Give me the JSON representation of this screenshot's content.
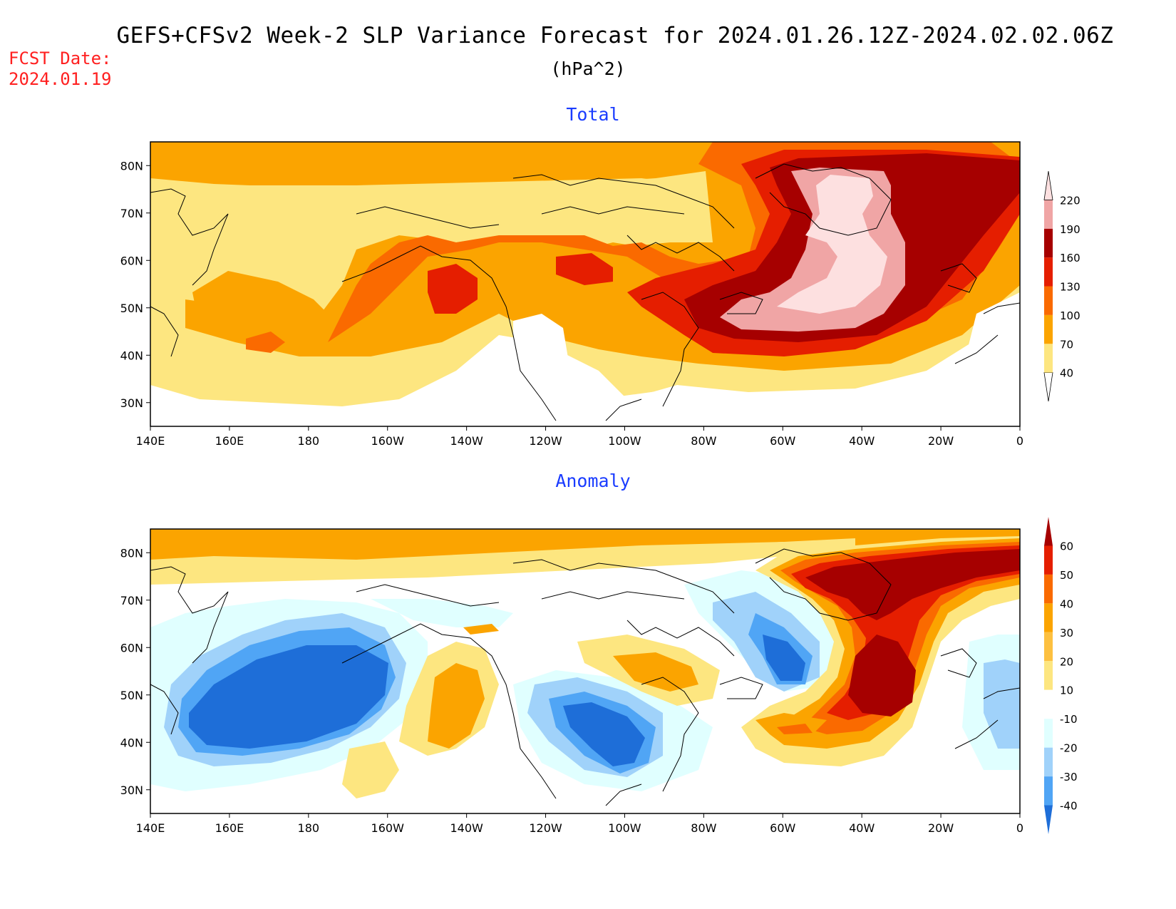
{
  "header": {
    "title": "GEFS+CFSv2 Week-2 SLP Variance Forecast for 2024.01.26.12Z-2024.02.02.06Z",
    "units": "(hPa^2)",
    "fcst_label": "FCST Date:",
    "fcst_date": "2024.01.19"
  },
  "panels": [
    {
      "title": "Total",
      "lon_ticks": [
        "140E",
        "160E",
        "180",
        "160W",
        "140W",
        "120W",
        "100W",
        "80W",
        "60W",
        "40W",
        "20W",
        "0"
      ],
      "lat_ticks": [
        "30N",
        "40N",
        "50N",
        "60N",
        "70N",
        "80N"
      ],
      "colorbar": {
        "levels": [
          "40",
          "70",
          "100",
          "130",
          "160",
          "190",
          "220"
        ],
        "colors": [
          "#ffffff",
          "#fde680",
          "#fba400",
          "#fa6a00",
          "#e51e00",
          "#a60000",
          "#f0a5a5",
          "#fde0e0"
        ]
      }
    },
    {
      "title": "Anomaly",
      "lon_ticks": [
        "140E",
        "160E",
        "180",
        "160W",
        "140W",
        "120W",
        "100W",
        "80W",
        "60W",
        "40W",
        "20W",
        "0"
      ],
      "lat_ticks": [
        "30N",
        "40N",
        "50N",
        "60N",
        "70N",
        "80N"
      ],
      "colorbar": {
        "levels": [
          "60",
          "50",
          "40",
          "30",
          "20",
          "10",
          "-10",
          "-20",
          "-30",
          "-40"
        ],
        "colors": [
          "#a60000",
          "#e51e00",
          "#fa6a00",
          "#fba400",
          "#fdc040",
          "#fde680",
          "#ffffff",
          "#e0ffff",
          "#a0d2fa",
          "#50a5f5",
          "#1e6ed8"
        ]
      }
    }
  ]
}
